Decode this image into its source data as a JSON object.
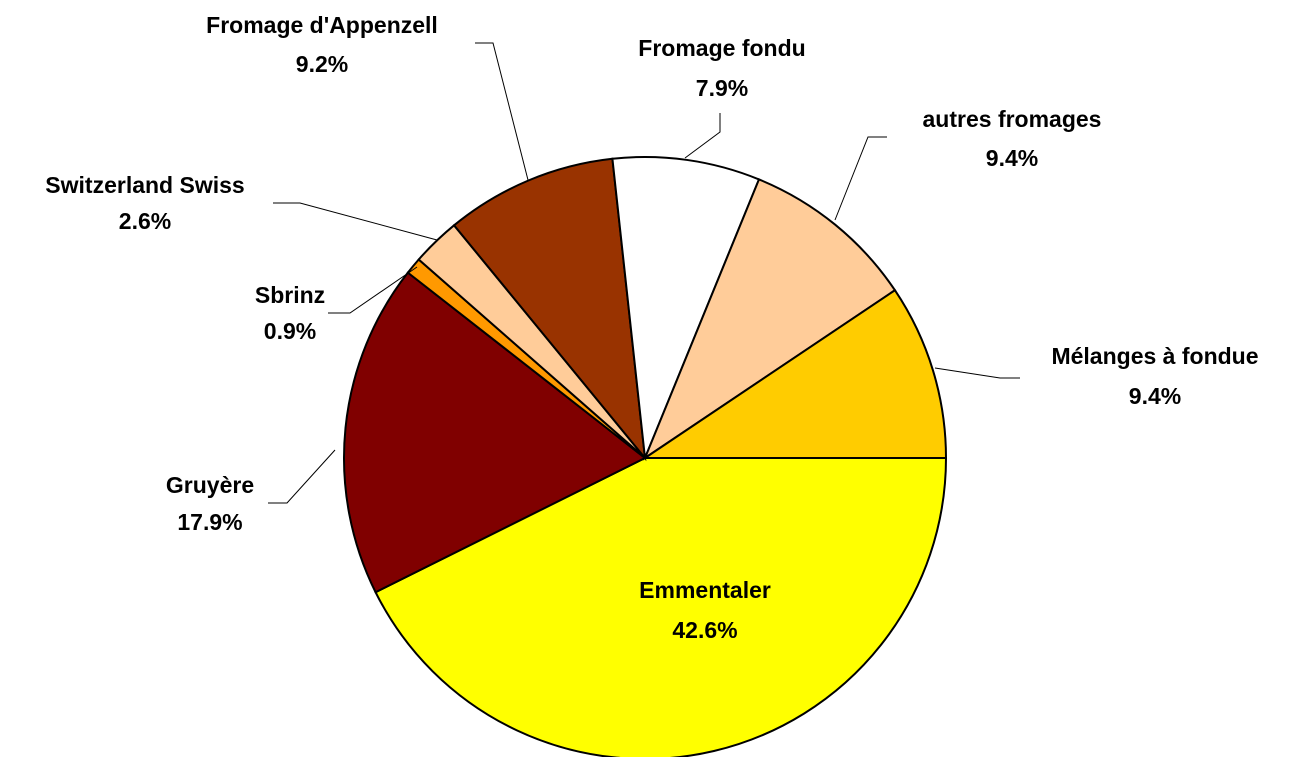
{
  "chart_data": {
    "type": "pie",
    "categories": [
      "Emmentaler",
      "Gruyère",
      "Sbrinz",
      "Switzerland Swiss",
      "Fromage d'Appenzell",
      "Fromage fondu",
      "autres fromages",
      "Mélanges à fondue"
    ],
    "values": [
      42.6,
      17.9,
      0.9,
      2.6,
      9.2,
      7.9,
      9.4,
      9.4
    ],
    "value_labels": [
      "42.6%",
      "17.9%",
      "0.9%",
      "2.6%",
      "9.2%",
      "7.9%",
      "9.4%",
      "9.4%"
    ],
    "colors": [
      "#ffff00",
      "#800000",
      "#ff9900",
      "#ffcc99",
      "#993300",
      "#ffffff",
      "#ffcc99",
      "#ffcc00"
    ]
  }
}
